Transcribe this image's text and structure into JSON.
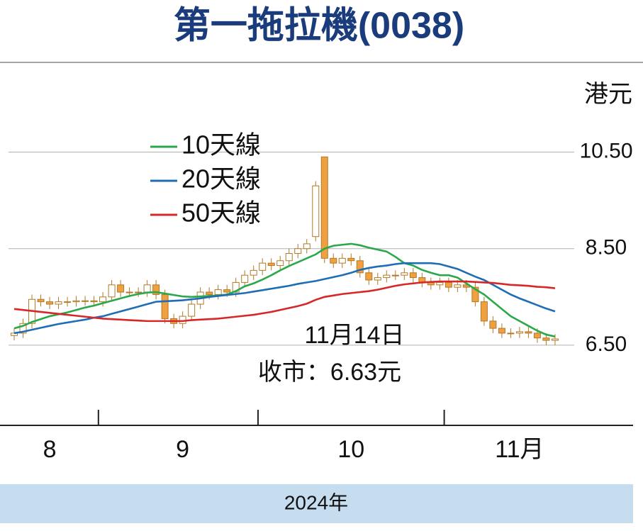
{
  "chart_data": {
    "type": "candlestick",
    "title": "第一拖拉機(0038)",
    "y_unit": "港元",
    "footer": "2024年",
    "annotations": [
      "11月14日",
      "收市：6.63元"
    ],
    "ylim": [
      4.84,
      11.3
    ],
    "yticks": [
      {
        "value": 6.5,
        "label": "6.50"
      },
      {
        "value": 8.5,
        "label": "8.50"
      },
      {
        "value": 10.5,
        "label": "10.50"
      }
    ],
    "xlim": [
      -1.6,
      69.8
    ],
    "xticks": [
      9.5,
      27.5,
      48.5
    ],
    "grid": true,
    "up_color": "#ffffff",
    "down_color": "#f0a040",
    "categories": [
      null,
      null,
      null,
      null,
      "8",
      null,
      null,
      null,
      null,
      null,
      null,
      null,
      null,
      null,
      null,
      null,
      null,
      null,
      null,
      "9",
      null,
      null,
      null,
      null,
      null,
      null,
      null,
      null,
      null,
      null,
      null,
      null,
      null,
      null,
      null,
      null,
      null,
      null,
      "10",
      null,
      null,
      null,
      null,
      null,
      null,
      null,
      null,
      null,
      null,
      null,
      null,
      null,
      null,
      null,
      null,
      null,
      null,
      "11月",
      null,
      null,
      null,
      null
    ],
    "open": [
      6.7,
      6.75,
      6.95,
      7.45,
      7.4,
      7.35,
      7.4,
      7.4,
      7.42,
      7.42,
      7.4,
      7.5,
      7.75,
      7.6,
      7.6,
      7.6,
      7.75,
      7.55,
      7.05,
      6.95,
      7.1,
      7.35,
      7.6,
      7.55,
      7.65,
      7.6,
      7.8,
      7.95,
      8.05,
      8.2,
      8.15,
      8.25,
      8.4,
      8.5,
      8.75,
      10.4,
      8.3,
      8.2,
      8.3,
      8.25,
      8.0,
      7.85,
      7.9,
      7.95,
      7.95,
      8.0,
      7.9,
      7.8,
      7.75,
      7.8,
      7.7,
      7.75,
      7.7,
      7.4,
      7.0,
      6.85,
      6.75,
      6.75,
      6.78,
      6.75,
      6.65,
      6.6
    ],
    "high": [
      6.85,
      7.05,
      7.55,
      7.55,
      7.5,
      7.5,
      7.5,
      7.52,
      7.52,
      7.52,
      7.6,
      7.85,
      7.85,
      7.7,
      7.7,
      7.85,
      7.85,
      7.65,
      7.15,
      7.2,
      7.45,
      7.7,
      7.7,
      7.75,
      7.75,
      7.9,
      8.05,
      8.15,
      8.3,
      8.3,
      8.35,
      8.5,
      8.6,
      8.7,
      9.9,
      10.4,
      8.4,
      8.4,
      8.4,
      8.35,
      8.1,
      8.0,
      8.05,
      8.05,
      8.1,
      8.1,
      8.0,
      7.9,
      7.9,
      7.9,
      7.85,
      7.85,
      7.8,
      7.5,
      7.1,
      6.95,
      6.85,
      6.88,
      6.88,
      6.85,
      6.75,
      6.73
    ],
    "low": [
      6.6,
      6.65,
      6.85,
      7.3,
      7.25,
      7.25,
      7.3,
      7.3,
      7.32,
      7.3,
      7.3,
      7.4,
      7.5,
      7.5,
      7.5,
      7.5,
      7.45,
      6.95,
      6.85,
      6.85,
      7.0,
      7.25,
      7.45,
      7.45,
      7.5,
      7.5,
      7.7,
      7.85,
      7.95,
      8.05,
      8.05,
      8.15,
      8.3,
      8.4,
      8.65,
      8.2,
      8.1,
      8.1,
      8.15,
      7.9,
      7.75,
      7.75,
      7.8,
      7.85,
      7.85,
      7.8,
      7.7,
      7.65,
      7.65,
      7.6,
      7.6,
      7.6,
      7.3,
      6.9,
      6.75,
      6.65,
      6.65,
      6.65,
      6.65,
      6.55,
      6.5,
      6.5
    ],
    "close": [
      6.75,
      6.95,
      7.45,
      7.4,
      7.35,
      7.4,
      7.4,
      7.42,
      7.42,
      7.4,
      7.5,
      7.75,
      7.6,
      7.6,
      7.6,
      7.75,
      7.55,
      7.05,
      6.95,
      7.1,
      7.35,
      7.6,
      7.55,
      7.65,
      7.6,
      7.8,
      7.95,
      8.05,
      8.2,
      8.15,
      8.25,
      8.4,
      8.5,
      8.6,
      9.8,
      8.3,
      8.2,
      8.3,
      8.25,
      8.0,
      7.85,
      7.9,
      7.95,
      7.95,
      8.0,
      7.9,
      7.8,
      7.75,
      7.8,
      7.7,
      7.75,
      7.7,
      7.4,
      7.0,
      6.85,
      6.75,
      6.75,
      6.78,
      6.75,
      6.65,
      6.6,
      6.63
    ],
    "series": [
      {
        "name": "10天線",
        "color": "#2aa84a",
        "values": [
          6.85,
          6.9,
          6.98,
          7.04,
          7.1,
          7.14,
          7.18,
          7.23,
          7.28,
          7.32,
          7.37,
          7.42,
          7.47,
          7.52,
          7.56,
          7.59,
          7.6,
          7.57,
          7.54,
          7.51,
          7.5,
          7.51,
          7.52,
          7.53,
          7.55,
          7.62,
          7.72,
          7.78,
          7.86,
          7.95,
          8.05,
          8.14,
          8.22,
          8.3,
          8.38,
          8.5,
          8.56,
          8.58,
          8.6,
          8.57,
          8.52,
          8.48,
          8.44,
          8.33,
          8.2,
          8.15,
          8.06,
          8.0,
          7.95,
          7.95,
          7.9,
          7.78,
          7.66,
          7.55,
          7.4,
          7.25,
          7.1,
          7.0,
          6.9,
          6.8,
          6.72,
          6.68
        ]
      },
      {
        "name": "20天線",
        "color": "#1f6db5",
        "values": [
          6.75,
          6.78,
          6.82,
          6.86,
          6.9,
          6.94,
          6.97,
          7.0,
          7.03,
          7.07,
          7.1,
          7.15,
          7.2,
          7.25,
          7.3,
          7.35,
          7.4,
          7.41,
          7.42,
          7.43,
          7.45,
          7.47,
          7.5,
          7.52,
          7.54,
          7.56,
          7.58,
          7.61,
          7.64,
          7.67,
          7.7,
          7.73,
          7.77,
          7.8,
          7.83,
          7.87,
          7.91,
          7.95,
          8.0,
          8.06,
          8.1,
          8.13,
          8.15,
          8.18,
          8.2,
          8.2,
          8.2,
          8.2,
          8.18,
          8.13,
          8.08,
          8.0,
          7.92,
          7.85,
          7.75,
          7.65,
          7.55,
          7.47,
          7.4,
          7.33,
          7.26,
          7.2
        ]
      },
      {
        "name": "50天線",
        "color": "#d62828",
        "values": [
          7.25,
          7.23,
          7.21,
          7.19,
          7.17,
          7.15,
          7.13,
          7.11,
          7.09,
          7.07,
          7.05,
          7.04,
          7.03,
          7.02,
          7.01,
          7.0,
          7.0,
          7.0,
          7.0,
          7.0,
          7.02,
          7.03,
          7.04,
          7.05,
          7.07,
          7.09,
          7.11,
          7.13,
          7.16,
          7.19,
          7.23,
          7.27,
          7.31,
          7.36,
          7.44,
          7.5,
          7.53,
          7.56,
          7.58,
          7.6,
          7.62,
          7.65,
          7.69,
          7.73,
          7.76,
          7.78,
          7.8,
          7.81,
          7.82,
          7.82,
          7.82,
          7.82,
          7.81,
          7.8,
          7.79,
          7.77,
          7.75,
          7.74,
          7.73,
          7.71,
          7.7,
          7.68
        ]
      }
    ]
  }
}
